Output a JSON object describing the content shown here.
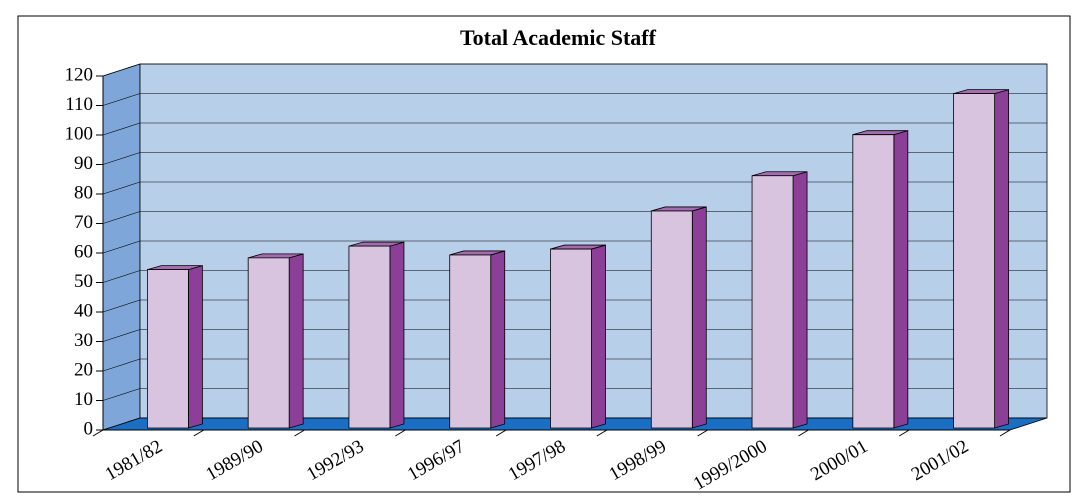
{
  "chart_data": {
    "type": "bar3d",
    "title": "Total Academic Staff",
    "categories": [
      "1981/82",
      "1989/90",
      "1992/93",
      "1996/97",
      "1997/98",
      "1998/99",
      "1999/2000",
      "2000/01",
      "2001/02"
    ],
    "values": [
      54,
      58,
      62,
      59,
      61,
      74,
      86,
      100,
      114
    ],
    "color": "#d9c4e0",
    "ylim": [
      0,
      120
    ],
    "yticks": [
      0,
      10,
      20,
      30,
      40,
      50,
      60,
      70,
      80,
      90,
      100,
      110,
      120
    ],
    "grid": true
  }
}
